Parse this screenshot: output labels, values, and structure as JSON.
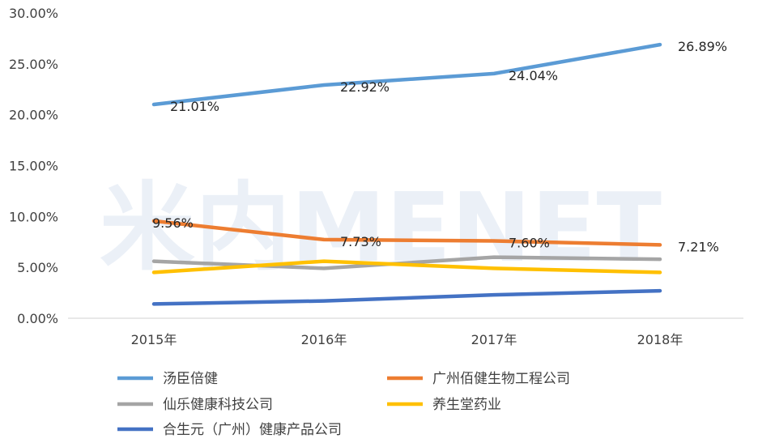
{
  "chart_data": {
    "type": "line",
    "categories": [
      "2015年",
      "2016年",
      "2017年",
      "2018年"
    ],
    "ylim": [
      0,
      30
    ],
    "yticks": [
      "0.00%",
      "5.00%",
      "10.00%",
      "15.00%",
      "20.00%",
      "25.00%",
      "30.00%"
    ],
    "legend": "bottom",
    "grid": false,
    "watermark": "米内MENET",
    "series": [
      {
        "name": "汤臣倍健",
        "color": "#5B9BD5",
        "values": [
          21.01,
          22.92,
          24.04,
          26.89
        ],
        "labels": [
          "21.01%",
          "22.92%",
          "24.04%",
          "26.89%"
        ]
      },
      {
        "name": "广州佰健生物工程公司",
        "color": "#ED7D31",
        "values": [
          9.56,
          7.73,
          7.6,
          7.21
        ],
        "labels": [
          "9.56%",
          "7.73%",
          "7.60%",
          "7.21%"
        ]
      },
      {
        "name": "仙乐健康科技公司",
        "color": "#A5A5A5",
        "values": [
          5.6,
          4.9,
          6.0,
          5.8
        ]
      },
      {
        "name": "养生堂药业",
        "color": "#FFC000",
        "values": [
          4.5,
          5.6,
          4.9,
          4.5
        ]
      },
      {
        "name": "合生元（广州）健康产品公司",
        "color": "#4472C4",
        "values": [
          1.4,
          1.7,
          2.3,
          2.7
        ]
      }
    ]
  }
}
